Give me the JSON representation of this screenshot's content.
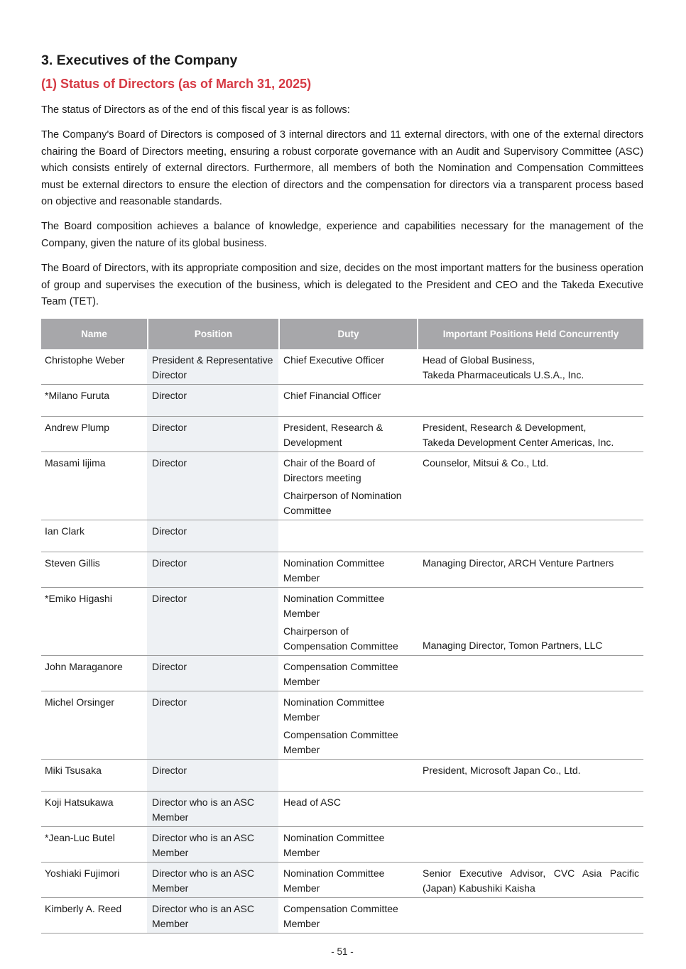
{
  "page": {
    "section_title": "3. Executives of the Company",
    "subsection_title": "(1) Status of Directors (as of March 31, 2025)",
    "paragraphs": [
      "The status of Directors as of the end of this fiscal year is as follows:",
      "The Company's Board of Directors is composed of 3 internal directors and 11 external directors, with one of the external directors chairing the Board of Directors meeting, ensuring a robust corporate governance with an Audit and Supervisory Committee (ASC) which consists entirely of external directors. Furthermore, all members of both the Nomination and Compensation Committees must be external directors to ensure the election of directors and the compensation for directors via a transparent process based on objective and reasonable standards.",
      "The Board composition achieves a balance of knowledge, experience and capabilities necessary for the management of the Company, given the nature of its global business.",
      "The Board of Directors, with its appropriate composition and size, decides on the most important matters for the business operation of group and supervises the execution of the business, which is delegated to the President and CEO and the Takeda Executive Team (TET)."
    ],
    "page_number": "- 51 -"
  },
  "table": {
    "headers": [
      "Name",
      "Position",
      "Duty",
      "Important Positions Held Concurrently"
    ],
    "rows": [
      {
        "name": "Christophe Weber",
        "position": "President & Representative Director",
        "duty": [
          "Chief Executive Officer"
        ],
        "concurrent": [
          "Head of Global Business,\nTakeda Pharmaceuticals U.S.A., Inc."
        ]
      },
      {
        "name": "*Milano Furuta",
        "position": "Director",
        "duty": [
          "Chief Financial Officer"
        ],
        "concurrent": []
      },
      {
        "name": "Andrew Plump",
        "position": "Director",
        "duty": [
          "President, Research & Development"
        ],
        "concurrent": [
          "President, Research & Development,\nTakeda Development Center Americas, Inc."
        ]
      },
      {
        "name": "Masami Iijima",
        "position": "Director",
        "duty": [
          "Chair of the Board of Directors meeting",
          "Chairperson of Nomination Committee"
        ],
        "concurrent": [
          "Counselor, Mitsui & Co., Ltd."
        ]
      },
      {
        "name": "Ian Clark",
        "position": "Director",
        "duty": [],
        "concurrent": []
      },
      {
        "name": "Steven Gillis",
        "position": "Director",
        "duty": [
          "Nomination Committee Member"
        ],
        "concurrent": [
          "Managing Director, ARCH Venture Partners"
        ]
      },
      {
        "name": "*Emiko Higashi",
        "position": "Director",
        "duty": [
          "Nomination Committee Member",
          "Chairperson of Compensation Committee"
        ],
        "concurrent": [
          "Managing Director, Tomon Partners, LLC"
        ],
        "concurrent_valign": "bottom"
      },
      {
        "name": "John Maraganore",
        "position": "Director",
        "duty": [
          "Compensation Committee Member"
        ],
        "concurrent": []
      },
      {
        "name": "Michel Orsinger",
        "position": "Director",
        "duty": [
          "Nomination Committee Member",
          "Compensation Committee Member"
        ],
        "concurrent": []
      },
      {
        "name": "Miki Tsusaka",
        "position": "Director",
        "duty": [],
        "concurrent": [
          "President, Microsoft Japan Co., Ltd."
        ]
      },
      {
        "name": "Koji Hatsukawa",
        "position": "Director who is an ASC Member",
        "duty": [
          "Head of ASC"
        ],
        "concurrent": []
      },
      {
        "name": "*Jean-Luc Butel",
        "position": "Director who is an ASC Member",
        "duty": [
          "Nomination Committee Member"
        ],
        "concurrent": []
      },
      {
        "name": "Yoshiaki Fujimori",
        "position": "Director who is an ASC Member",
        "duty": [
          "Nomination Committee Member"
        ],
        "concurrent": [
          "Senior Executive Advisor, CVC Asia Pacific (Japan) Kabushiki Kaisha"
        ],
        "concurrent_justify": true
      },
      {
        "name": "Kimberly A. Reed",
        "position": "Director who is an ASC Member",
        "duty": [
          "Compensation Committee Member"
        ],
        "concurrent": []
      }
    ]
  },
  "colors": {
    "accent_red": "#d63a44",
    "table_header_bg": "#a7a7aa",
    "table_header_text": "#ffffff",
    "position_col_bg": "#eef1f4",
    "row_border": "#999999",
    "body_text": "#1a1a1a"
  }
}
